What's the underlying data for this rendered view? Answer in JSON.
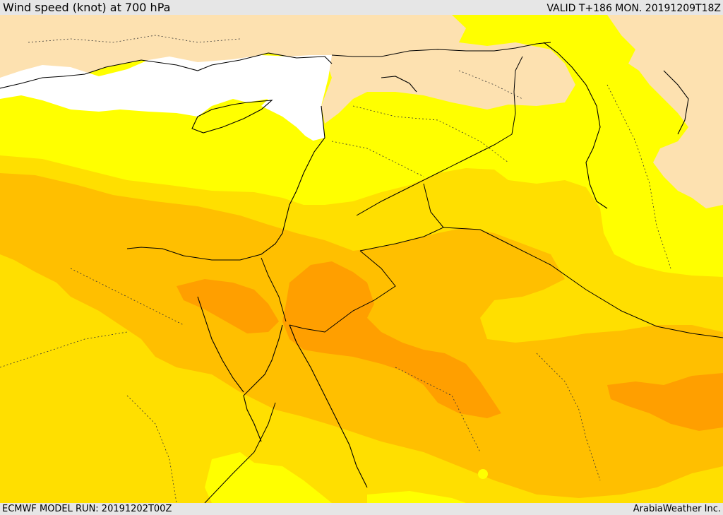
{
  "header": {
    "title": "Wind speed (knot) at 700 hPa",
    "valid_time": "VALID T+186 MON. 20191209T18Z"
  },
  "footer": {
    "model_run": "ECMWF MODEL RUN: 20191202T00Z",
    "credit": "ArabiaWeather Inc."
  },
  "colors": {
    "land_unfilled": "#fde1b0",
    "sea_unfilled": "#ffffff",
    "band_1": "#ffff00",
    "band_2": "#ffdf00",
    "band_3": "#ffbf00",
    "band_4": "#ff9f00",
    "coastline": "#000000",
    "border": "#000000"
  }
}
